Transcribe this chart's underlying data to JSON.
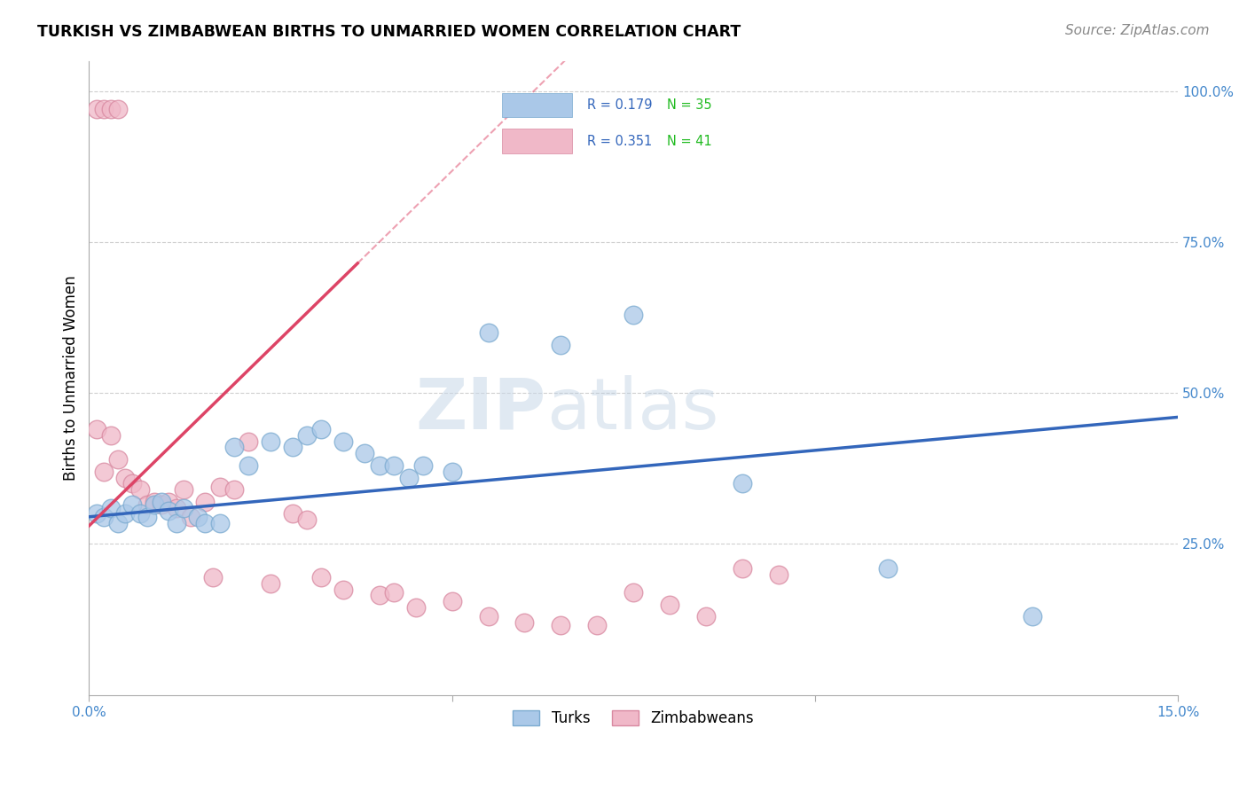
{
  "title": "TURKISH VS ZIMBABWEAN BIRTHS TO UNMARRIED WOMEN CORRELATION CHART",
  "source": "Source: ZipAtlas.com",
  "ylabel": "Births to Unmarried Women",
  "xlim": [
    0.0,
    0.15
  ],
  "ylim": [
    0.0,
    1.05
  ],
  "grid_color": "#bbbbbb",
  "background_color": "#ffffff",
  "turks_color": "#aac8e8",
  "turks_edge_color": "#7aaad0",
  "zimbabweans_color": "#f0b8c8",
  "zimbabweans_edge_color": "#d888a0",
  "turks_line_color": "#3366bb",
  "zimbabweans_line_color": "#dd4466",
  "tick_color": "#4488cc",
  "turks_R": 0.179,
  "turks_N": 35,
  "zimbabweans_R": 0.351,
  "zimbabweans_N": 41,
  "watermark_zip": "ZIP",
  "watermark_atlas": "atlas",
  "turks_x": [
    0.001,
    0.002,
    0.003,
    0.004,
    0.005,
    0.006,
    0.007,
    0.008,
    0.009,
    0.01,
    0.011,
    0.012,
    0.013,
    0.015,
    0.016,
    0.018,
    0.02,
    0.022,
    0.025,
    0.028,
    0.03,
    0.032,
    0.035,
    0.038,
    0.04,
    0.042,
    0.044,
    0.046,
    0.05,
    0.055,
    0.065,
    0.075,
    0.09,
    0.11,
    0.13
  ],
  "turks_y": [
    0.3,
    0.295,
    0.31,
    0.285,
    0.3,
    0.315,
    0.3,
    0.295,
    0.315,
    0.32,
    0.305,
    0.285,
    0.31,
    0.295,
    0.285,
    0.285,
    0.41,
    0.38,
    0.42,
    0.41,
    0.43,
    0.44,
    0.42,
    0.4,
    0.38,
    0.38,
    0.36,
    0.38,
    0.37,
    0.6,
    0.58,
    0.63,
    0.35,
    0.21,
    0.13
  ],
  "zimbabweans_x": [
    0.001,
    0.002,
    0.003,
    0.004,
    0.001,
    0.002,
    0.003,
    0.004,
    0.005,
    0.006,
    0.007,
    0.008,
    0.009,
    0.01,
    0.011,
    0.012,
    0.013,
    0.014,
    0.016,
    0.017,
    0.018,
    0.02,
    0.022,
    0.025,
    0.028,
    0.03,
    0.032,
    0.035,
    0.04,
    0.042,
    0.045,
    0.05,
    0.055,
    0.06,
    0.065,
    0.07,
    0.075,
    0.08,
    0.085,
    0.09,
    0.095
  ],
  "zimbabweans_y": [
    0.97,
    0.97,
    0.97,
    0.97,
    0.44,
    0.37,
    0.43,
    0.39,
    0.36,
    0.35,
    0.34,
    0.315,
    0.32,
    0.315,
    0.32,
    0.31,
    0.34,
    0.295,
    0.32,
    0.195,
    0.345,
    0.34,
    0.42,
    0.185,
    0.3,
    0.29,
    0.195,
    0.175,
    0.165,
    0.17,
    0.145,
    0.155,
    0.13,
    0.12,
    0.115,
    0.115,
    0.17,
    0.15,
    0.13,
    0.21,
    0.2
  ]
}
